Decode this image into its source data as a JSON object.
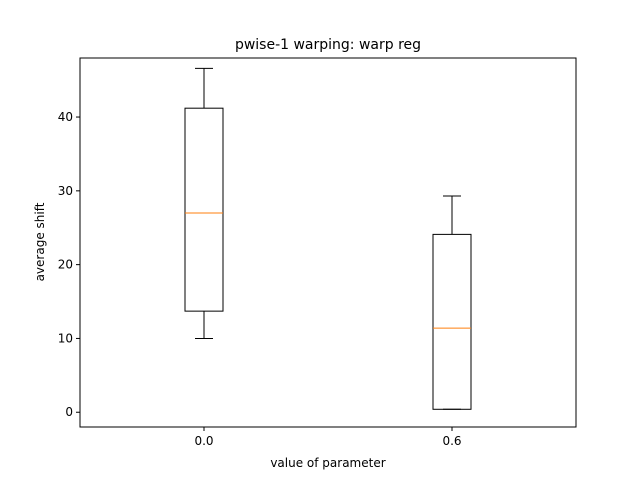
{
  "chart_data": {
    "type": "box",
    "title": "pwise-1 warping: warp reg",
    "xlabel": "value of parameter",
    "ylabel": "average shift",
    "categories": [
      "0.0",
      "0.6"
    ],
    "boxes": [
      {
        "category": "0.0",
        "whisker_low": 10.0,
        "q1": 13.7,
        "median": 27.0,
        "q3": 41.2,
        "whisker_high": 46.6
      },
      {
        "category": "0.6",
        "whisker_low": 0.4,
        "q1": 0.4,
        "median": 11.4,
        "q3": 24.1,
        "whisker_high": 29.3
      }
    ],
    "ylim": [
      -2,
      48
    ],
    "yticks": [
      0,
      10,
      20,
      30,
      40
    ],
    "grid": false,
    "colors": {
      "box": "#000000",
      "median": "#ff7f0e",
      "axes": "#000000"
    }
  }
}
